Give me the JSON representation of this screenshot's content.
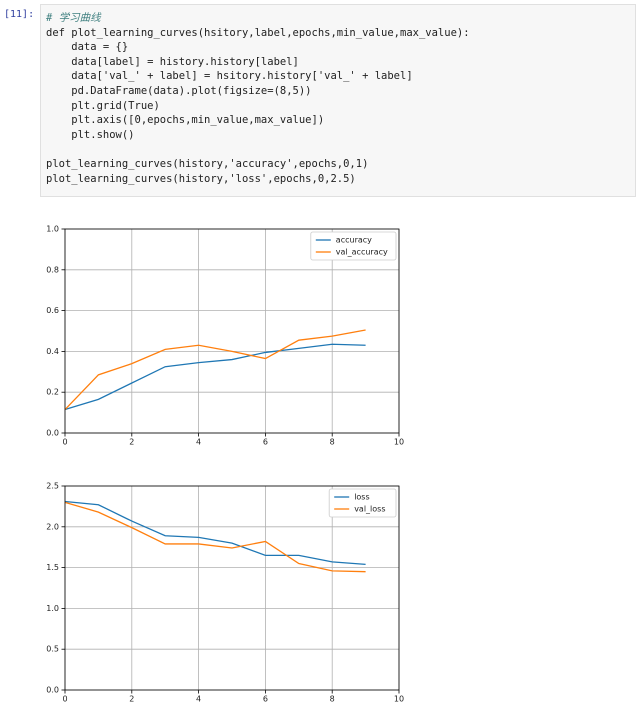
{
  "cell": {
    "prompt": "[11]:",
    "def_lines": [
      "# 学习曲线",
      "def plot_learning_curves(hsitory,label,epochs,min_value,max_value):",
      "    data = {}",
      "    data[label] = history.history[label]",
      "    data['val_' + label] = hsitory.history['val_' + label]",
      "    pd.DataFrame(data).plot(figsize=(8,5))",
      "    plt.grid(True)",
      "    plt.axis([0,epochs,min_value,max_value])",
      "    plt.show()"
    ],
    "call_lines": [
      "plot_learning_curves(history,'accuracy',epochs,0,1)",
      "plot_learning_curves(history,'loss',epochs,0,2.5)"
    ]
  },
  "chart_data": [
    {
      "type": "line",
      "x": [
        0,
        1,
        2,
        3,
        4,
        5,
        6,
        7,
        8,
        9
      ],
      "series": [
        {
          "name": "accuracy",
          "color": "#1f77b4",
          "values": [
            0.115,
            0.165,
            0.245,
            0.325,
            0.345,
            0.36,
            0.395,
            0.415,
            0.435,
            0.43
          ]
        },
        {
          "name": "val_accuracy",
          "color": "#ff7f0e",
          "values": [
            0.115,
            0.285,
            0.34,
            0.41,
            0.43,
            0.4,
            0.365,
            0.455,
            0.475,
            0.505
          ]
        }
      ],
      "xlim": [
        0,
        10
      ],
      "xticks": [
        0,
        2,
        4,
        6,
        8,
        10
      ],
      "ylim": [
        0,
        1
      ],
      "yticks": [
        {
          "value": 0,
          "label": "0.0"
        },
        0.2,
        0.4,
        0.6,
        0.8,
        {
          "value": 1,
          "label": "1.0"
        }
      ],
      "grid": true,
      "legend": "upper right"
    },
    {
      "type": "line",
      "x": [
        0,
        1,
        2,
        3,
        4,
        5,
        6,
        7,
        8,
        9
      ],
      "series": [
        {
          "name": "loss",
          "color": "#1f77b4",
          "values": [
            2.31,
            2.27,
            2.07,
            1.89,
            1.87,
            1.8,
            1.65,
            1.65,
            1.57,
            1.54
          ]
        },
        {
          "name": "val_loss",
          "color": "#ff7f0e",
          "values": [
            2.3,
            2.18,
            1.99,
            1.79,
            1.79,
            1.74,
            1.82,
            1.55,
            1.46,
            1.45
          ]
        }
      ],
      "xlim": [
        0,
        10
      ],
      "xticks": [
        0,
        2,
        4,
        6,
        8,
        10
      ],
      "ylim": [
        0,
        2.5
      ],
      "yticks": [
        {
          "value": 0,
          "label": "0.0"
        },
        0.5,
        {
          "value": 1,
          "label": "1.0"
        },
        1.5,
        {
          "value": 2,
          "label": "2.0"
        },
        2.5
      ],
      "grid": true,
      "legend": "upper right"
    }
  ]
}
